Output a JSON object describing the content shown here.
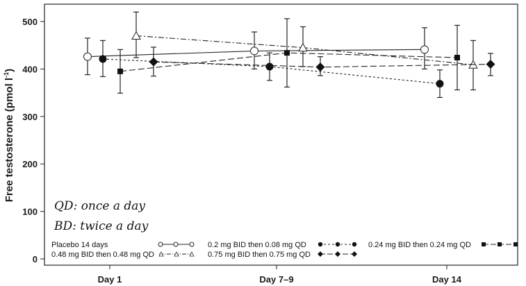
{
  "chart_data": {
    "type": "line",
    "title": "",
    "xlabel": "",
    "ylabel": "Free testosterone (pmol l⁻¹)",
    "ylim": [
      0,
      540
    ],
    "yticks": [
      0,
      100,
      200,
      300,
      400,
      500
    ],
    "categories": [
      "Day 1",
      "Day 7–9",
      "Day 14"
    ],
    "grid": false,
    "legend_position": "bottom inside",
    "annotations": [
      "QD: once a day",
      "BD: twice a day"
    ],
    "series": [
      {
        "name": "Placebo 14 days",
        "marker": "open-circle",
        "line": "solid",
        "offset": -32,
        "values": [
          426,
          438,
          441
        ],
        "err_low": [
          388,
          400,
          400
        ],
        "err_high": [
          465,
          478,
          487
        ]
      },
      {
        "name": "0.2 mg BID then 0.08 mg QD",
        "marker": "filled-circle",
        "line": "short-dash",
        "offset": -10,
        "values": [
          421,
          405,
          369
        ],
        "err_low": [
          384,
          376,
          340
        ],
        "err_high": [
          460,
          434,
          398
        ]
      },
      {
        "name": "0.24 mg BID then 0.24 mg QD",
        "marker": "filled-square",
        "line": "long-dash",
        "offset": 15,
        "values": [
          395,
          434,
          424
        ],
        "err_low": [
          349,
          362,
          356
        ],
        "err_high": [
          441,
          506,
          492
        ]
      },
      {
        "name": "0.48 mg BID then 0.48 mg QD",
        "marker": "open-triangle",
        "line": "dash-dot",
        "offset": 38,
        "values": [
          470,
          445,
          409
        ],
        "err_low": [
          424,
          405,
          356
        ],
        "err_high": [
          520,
          489,
          460
        ]
      },
      {
        "name": "0.75 mg BID then 0.75 mg QD",
        "marker": "filled-diamond",
        "line": "long-dash",
        "offset": 63,
        "values": [
          415,
          404,
          410
        ],
        "err_low": [
          385,
          386,
          386
        ],
        "err_high": [
          446,
          426,
          433
        ]
      }
    ]
  },
  "axis": {
    "ylabel": "Free testosterone (pmol l",
    "ylabel_sup": "-1",
    "ylabel_close": ")",
    "yticks": [
      "0",
      "100",
      "200",
      "300",
      "400",
      "500"
    ],
    "xticks": [
      "Day 1",
      "Day 7–9",
      "Day 14"
    ]
  },
  "notes": {
    "qd": "QD: once a day",
    "bd": "BD: twice a day"
  },
  "legend": {
    "placebo": "Placebo 14 days",
    "dose_048": "0.48 mg BID then 0.48 mg QD",
    "dose_02": "0.2 mg BID then 0.08 mg QD",
    "dose_075": "0.75 mg BID then 0.75 mg QD",
    "dose_024": "0.24 mg BID then 0.24 mg QD"
  }
}
